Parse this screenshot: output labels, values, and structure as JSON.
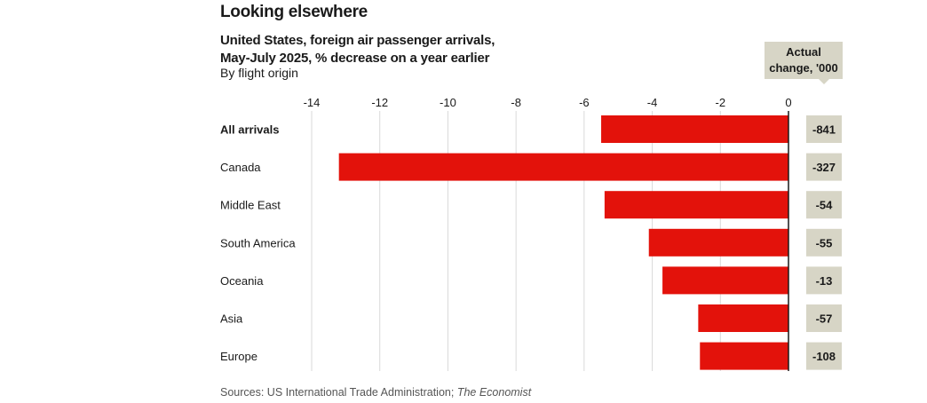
{
  "chart_data": {
    "type": "bar",
    "orientation": "horizontal",
    "title": "Looking elsewhere",
    "subtitle_lines": [
      "United States, foreign air passenger arrivals,",
      "May-July 2025, % decrease on a year earlier"
    ],
    "byline": "By flight origin",
    "xlabel": "",
    "ylabel": "",
    "xlim": [
      -14,
      0
    ],
    "xticks": [
      -14,
      -12,
      -10,
      -8,
      -6,
      -4,
      -2,
      0
    ],
    "grid": true,
    "categories": [
      "All arrivals",
      "Canada",
      "Middle East",
      "South America",
      "Oceania",
      "Asia",
      "Europe"
    ],
    "values": [
      -5.5,
      -13.2,
      -5.4,
      -4.1,
      -3.7,
      -2.65,
      -2.6
    ],
    "bold_categories": [
      "All arrivals"
    ],
    "actual_change_header": [
      "Actual",
      "change, '000"
    ],
    "actual_change": [
      "-841",
      "-327",
      "-54",
      "-55",
      "-13",
      "-57",
      "-108"
    ],
    "bar_color": "#e3120b",
    "label_box_color": "#d7d5c6",
    "source_prefix": "Sources: US International Trade Administration; ",
    "source_italic": "The Economist"
  }
}
